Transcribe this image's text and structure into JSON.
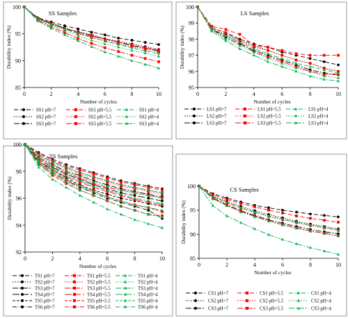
{
  "chart_data": [
    {
      "type": "line",
      "title": "SS Samples",
      "xlabel": "Number of cycles",
      "ylabel": "Durability index (%)",
      "xlim": [
        0,
        10
      ],
      "ylim": [
        85,
        100
      ],
      "xticks": [
        0,
        2,
        4,
        6,
        8,
        10
      ],
      "yticks": [
        85,
        90,
        95,
        100
      ],
      "x": [
        0,
        1,
        2,
        3,
        4,
        5,
        6,
        7,
        8,
        9,
        10
      ],
      "series": [
        {
          "name": "SS1 pH=7",
          "color": "#000000",
          "dash": "6,3",
          "marker": "circle",
          "values": [
            100,
            98.0,
            97.2,
            96.5,
            95.9,
            95.3,
            94.8,
            94.2,
            93.8,
            93.4,
            93.0
          ]
        },
        {
          "name": "SS2 pH=7",
          "color": "#000000",
          "dash": "1.5,2",
          "marker": "circle",
          "values": [
            100,
            97.9,
            97.0,
            96.1,
            95.4,
            94.8,
            94.1,
            93.6,
            93.1,
            92.6,
            92.1
          ]
        },
        {
          "name": "SS3 pH=7",
          "color": "#000000",
          "dash": "8,2,2,2",
          "marker": "circle",
          "values": [
            100,
            97.8,
            96.9,
            96.0,
            95.3,
            94.6,
            94.0,
            93.4,
            92.8,
            92.3,
            91.8
          ]
        },
        {
          "name": "SS1 pH=5.5",
          "color": "#ff0000",
          "dash": "6,3",
          "marker": "square",
          "values": [
            100,
            97.9,
            96.9,
            96.0,
            95.3,
            94.7,
            94.0,
            93.5,
            92.9,
            92.4,
            92.0
          ]
        },
        {
          "name": "SS2 pH=5.5",
          "color": "#ff0000",
          "dash": "1.5,2",
          "marker": "square",
          "values": [
            100,
            97.7,
            96.7,
            95.8,
            95.0,
            94.3,
            93.7,
            93.1,
            92.6,
            92.1,
            91.6
          ]
        },
        {
          "name": "SS3 pH=5.5",
          "color": "#ff0000",
          "dash": "8,2,2,2",
          "marker": "square",
          "values": [
            100,
            97.5,
            96.3,
            95.2,
            94.1,
            93.2,
            92.4,
            91.7,
            91.0,
            90.4,
            89.8
          ]
        },
        {
          "name": "SS1 pH=4",
          "color": "#00b050",
          "dash": "6,3",
          "marker": "triangle",
          "values": [
            100,
            97.8,
            96.8,
            95.9,
            95.1,
            94.4,
            93.6,
            93.0,
            92.4,
            91.8,
            91.3
          ]
        },
        {
          "name": "SS2 pH=4",
          "color": "#00b050",
          "dash": "1.5,2",
          "marker": "triangle",
          "values": [
            100,
            97.6,
            96.5,
            95.5,
            94.6,
            93.8,
            93.1,
            92.5,
            91.9,
            91.4,
            90.8
          ]
        },
        {
          "name": "SS3 pH=4",
          "color": "#00b050",
          "dash": "8,2,2,2",
          "marker": "triangle",
          "values": [
            100,
            97.4,
            96.0,
            94.8,
            93.7,
            92.6,
            91.6,
            90.8,
            90.0,
            89.3,
            88.6
          ]
        }
      ]
    },
    {
      "type": "line",
      "title": "LS Samples",
      "xlabel": "Number of cycles",
      "ylabel": "Durability index (%)",
      "xlim": [
        0,
        10
      ],
      "ylim": [
        95,
        100
      ],
      "xticks": [
        0,
        2,
        4,
        6,
        8,
        10
      ],
      "yticks": [
        95,
        96,
        97,
        98,
        99,
        100
      ],
      "x": [
        0,
        1,
        2,
        3,
        4,
        5,
        6,
        7,
        8,
        9,
        10
      ],
      "series": [
        {
          "name": "LS1 pH=7",
          "color": "#000000",
          "dash": "6,3",
          "marker": "circle",
          "values": [
            100,
            98.7,
            98.4,
            98.0,
            97.7,
            97.5,
            97.2,
            97.0,
            96.8,
            96.6,
            96.4
          ]
        },
        {
          "name": "LS2 pH=7",
          "color": "#000000",
          "dash": "1.5,2",
          "marker": "circle",
          "values": [
            100,
            98.6,
            98.3,
            97.9,
            97.6,
            97.3,
            97.0,
            96.7,
            96.5,
            96.2,
            96.0
          ]
        },
        {
          "name": "LS3 pH=7",
          "color": "#000000",
          "dash": "8,2,2,2",
          "marker": "circle",
          "values": [
            100,
            98.6,
            98.1,
            97.7,
            97.3,
            97.0,
            96.7,
            96.4,
            96.1,
            95.9,
            95.8
          ]
        },
        {
          "name": "LS1 pH=5.5",
          "color": "#ff0000",
          "dash": "6,3",
          "marker": "square",
          "values": [
            100,
            98.8,
            98.6,
            98.3,
            97.6,
            97.5,
            97.3,
            97.1,
            97.0,
            97.0,
            97.0
          ]
        },
        {
          "name": "LS2 pH=5.5",
          "color": "#ff0000",
          "dash": "1.5,2",
          "marker": "square",
          "values": [
            100,
            98.7,
            98.4,
            97.9,
            97.5,
            97.3,
            97.0,
            96.7,
            96.5,
            96.2,
            96.0
          ]
        },
        {
          "name": "LS3 pH=5.5",
          "color": "#ff0000",
          "dash": "8,2,2,2",
          "marker": "square",
          "values": [
            100,
            98.6,
            98.2,
            97.8,
            97.2,
            96.9,
            96.6,
            96.3,
            96.0,
            95.8,
            95.8
          ]
        },
        {
          "name": "LS1 pH=4",
          "color": "#00b050",
          "dash": "6,3",
          "marker": "triangle",
          "values": [
            100,
            98.7,
            98.2,
            97.8,
            97.4,
            97.1,
            96.8,
            96.5,
            96.3,
            96.1,
            95.9
          ]
        },
        {
          "name": "LS2 pH=4",
          "color": "#00b050",
          "dash": "1.5,2",
          "marker": "triangle",
          "values": [
            100,
            98.6,
            98.0,
            97.6,
            97.2,
            96.8,
            96.5,
            96.2,
            96.0,
            95.7,
            95.6
          ]
        },
        {
          "name": "LS3 pH=4",
          "color": "#00b050",
          "dash": "8,2,2,2",
          "marker": "triangle",
          "values": [
            100,
            98.5,
            97.9,
            97.4,
            97.0,
            96.6,
            96.3,
            96.0,
            95.7,
            95.5,
            95.4
          ]
        }
      ]
    },
    {
      "type": "line",
      "title": "TS Samples",
      "xlabel": "Number of cycles",
      "ylabel": "Durability index (%)",
      "xlim": [
        0,
        10
      ],
      "ylim": [
        92,
        100
      ],
      "xticks": [
        0,
        2,
        4,
        6,
        8,
        10
      ],
      "yticks": [
        92,
        94,
        96,
        98,
        100
      ],
      "x": [
        0,
        1,
        2,
        3,
        4,
        5,
        6,
        7,
        8,
        9,
        10
      ],
      "series": [
        {
          "name": "TS1 pH=7",
          "color": "#000000",
          "dash": "6,3",
          "marker": "circle",
          "values": [
            100,
            99.4,
            98.9,
            98.5,
            98.2,
            97.9,
            97.6,
            97.3,
            97.1,
            96.9,
            96.7
          ]
        },
        {
          "name": "TS2 pH=7",
          "color": "#000000",
          "dash": "1.5,2",
          "marker": "circle",
          "values": [
            100,
            99.2,
            98.7,
            98.3,
            97.9,
            97.6,
            97.3,
            97.0,
            96.8,
            96.6,
            96.4
          ]
        },
        {
          "name": "TS3 pH=7",
          "color": "#000000",
          "dash": "8,2,2,2",
          "marker": "circle",
          "values": [
            100,
            99.0,
            98.5,
            98.0,
            97.7,
            97.3,
            97.0,
            96.7,
            96.5,
            96.3,
            96.1
          ]
        },
        {
          "name": "TS4 pH=7",
          "color": "#000000",
          "dash": "10,3",
          "marker": "circle",
          "values": [
            100,
            98.9,
            98.3,
            97.8,
            97.4,
            97.0,
            96.7,
            96.4,
            96.2,
            96.0,
            95.8
          ]
        },
        {
          "name": "TS5 pH=7",
          "color": "#000000",
          "dash": "4,2",
          "marker": "circle",
          "values": [
            100,
            98.7,
            98.1,
            97.5,
            97.0,
            96.6,
            96.3,
            96.0,
            95.8,
            95.6,
            95.4
          ]
        },
        {
          "name": "TS6 pH=7",
          "color": "#000000",
          "dash": "6,2,1,2",
          "marker": "circle",
          "values": [
            100,
            98.6,
            97.9,
            97.3,
            96.8,
            96.4,
            96.0,
            95.7,
            95.4,
            95.1,
            94.5
          ]
        },
        {
          "name": "TS1 pH=5.5",
          "color": "#ff0000",
          "dash": "6,3",
          "marker": "square",
          "values": [
            100,
            99.3,
            98.8,
            98.4,
            98.1,
            97.8,
            97.5,
            97.2,
            97.0,
            96.8,
            96.6
          ]
        },
        {
          "name": "TS2 pH=5.5",
          "color": "#ff0000",
          "dash": "1.5,2",
          "marker": "square",
          "values": [
            100,
            99.1,
            98.6,
            98.2,
            97.8,
            97.5,
            97.2,
            96.9,
            96.7,
            96.5,
            96.3
          ]
        },
        {
          "name": "TS3 pH=5.5",
          "color": "#ff0000",
          "dash": "8,2,2,2",
          "marker": "square",
          "values": [
            100,
            98.9,
            98.3,
            97.9,
            97.5,
            97.1,
            96.8,
            96.6,
            96.4,
            96.2,
            96.0
          ]
        },
        {
          "name": "TS4 pH=5.5",
          "color": "#ff0000",
          "dash": "10,3",
          "marker": "square",
          "values": [
            100,
            98.8,
            98.1,
            97.6,
            97.2,
            96.8,
            96.5,
            96.2,
            95.9,
            95.7,
            95.5
          ]
        },
        {
          "name": "TS5 pH=5.5",
          "color": "#ff0000",
          "dash": "4,2",
          "marker": "square",
          "values": [
            100,
            98.6,
            97.9,
            97.3,
            96.9,
            96.5,
            96.1,
            95.8,
            95.5,
            95.3,
            95.0
          ]
        },
        {
          "name": "TS6 pH=5.5",
          "color": "#ff0000",
          "dash": "6,2,1,2",
          "marker": "square",
          "values": [
            100,
            98.5,
            97.7,
            97.1,
            96.6,
            96.2,
            95.8,
            95.4,
            95.1,
            94.8,
            94.7
          ]
        },
        {
          "name": "TS1 pH=4",
          "color": "#00b050",
          "dash": "6,3",
          "marker": "triangle",
          "values": [
            100,
            99.2,
            98.7,
            98.3,
            97.9,
            97.6,
            97.3,
            97.0,
            96.8,
            96.6,
            96.4
          ]
        },
        {
          "name": "TS2 pH=4",
          "color": "#00b050",
          "dash": "1.5,2",
          "marker": "triangle",
          "values": [
            100,
            99.0,
            98.4,
            98.0,
            97.6,
            97.2,
            96.9,
            96.6,
            96.4,
            96.2,
            96.0
          ]
        },
        {
          "name": "TS3 pH=4",
          "color": "#00b050",
          "dash": "8,2,2,2",
          "marker": "triangle",
          "values": [
            100,
            98.8,
            98.2,
            97.7,
            97.3,
            96.9,
            96.6,
            96.3,
            96.0,
            95.8,
            95.6
          ]
        },
        {
          "name": "TS4 pH=4",
          "color": "#00b050",
          "dash": "10,3",
          "marker": "triangle",
          "values": [
            100,
            98.7,
            98.0,
            97.4,
            96.9,
            96.5,
            96.1,
            95.8,
            95.5,
            95.3,
            95.1
          ]
        },
        {
          "name": "TS5 pH=4",
          "color": "#00b050",
          "dash": "4,2",
          "marker": "triangle",
          "values": [
            100,
            98.5,
            97.8,
            97.2,
            96.6,
            96.2,
            95.8,
            95.4,
            95.1,
            94.8,
            94.6
          ]
        },
        {
          "name": "TS6 pH=4",
          "color": "#00b050",
          "dash": "6,2,1,2",
          "marker": "triangle",
          "values": [
            100,
            98.3,
            97.4,
            96.8,
            96.2,
            95.7,
            95.2,
            94.8,
            94.4,
            94.1,
            93.8
          ]
        }
      ]
    },
    {
      "type": "line",
      "title": "CS Samples",
      "xlabel": "Number of cycles",
      "ylabel": "Durability index (%)",
      "xlim": [
        0,
        10
      ],
      "ylim": [
        85,
        100
      ],
      "xticks": [
        0,
        2,
        4,
        6,
        8,
        10
      ],
      "yticks": [
        85,
        90,
        95,
        100
      ],
      "x": [
        0,
        1,
        2,
        3,
        4,
        5,
        6,
        7,
        8,
        9,
        10
      ],
      "series": [
        {
          "name": "CS1 pH=7",
          "color": "#000000",
          "dash": "6,3",
          "marker": "circle",
          "values": [
            100,
            98.4,
            97.5,
            96.7,
            96.0,
            95.5,
            95.0,
            94.6,
            94.2,
            93.9,
            93.6
          ]
        },
        {
          "name": "CS2 pH=7",
          "color": "#000000",
          "dash": "1.5,2",
          "marker": "circle",
          "values": [
            100,
            97.9,
            96.8,
            95.8,
            94.9,
            94.1,
            93.4,
            92.7,
            92.1,
            91.6,
            91.1
          ]
        },
        {
          "name": "CS3 pH=7",
          "color": "#000000",
          "dash": "8,2,2,2",
          "marker": "circle",
          "values": [
            100,
            97.5,
            96.1,
            94.9,
            93.9,
            93.0,
            92.3,
            91.6,
            91.0,
            90.5,
            90.1
          ]
        },
        {
          "name": "CS1 pH=5.5",
          "color": "#ff0000",
          "dash": "6,3",
          "marker": "square",
          "values": [
            100,
            98.2,
            97.2,
            96.4,
            95.7,
            95.0,
            94.4,
            93.8,
            93.3,
            92.9,
            92.5
          ]
        },
        {
          "name": "CS2 pH=5.5",
          "color": "#ff0000",
          "dash": "1.5,2",
          "marker": "square",
          "values": [
            100,
            97.7,
            96.5,
            95.4,
            94.5,
            93.7,
            93.0,
            92.4,
            91.8,
            91.3,
            90.8
          ]
        },
        {
          "name": "CS3 pH=5.5",
          "color": "#ff0000",
          "dash": "8,2,2,2",
          "marker": "square",
          "values": [
            100,
            97.4,
            96.0,
            94.8,
            93.7,
            92.8,
            92.0,
            91.3,
            90.7,
            90.2,
            89.7
          ]
        },
        {
          "name": "CS1 pH=4",
          "color": "#00b050",
          "dash": "6,3",
          "marker": "triangle",
          "values": [
            100,
            97.8,
            96.6,
            95.5,
            94.6,
            93.8,
            93.1,
            92.5,
            91.9,
            91.4,
            90.9
          ]
        },
        {
          "name": "CS2 pH=4",
          "color": "#00b050",
          "dash": "1.5,2",
          "marker": "triangle",
          "values": [
            100,
            97.3,
            95.9,
            94.6,
            93.6,
            92.7,
            91.9,
            91.2,
            90.6,
            90.1,
            89.6
          ]
        },
        {
          "name": "CS3 pH=4",
          "color": "#00b050",
          "dash": "8,2,2,2",
          "marker": "triangle",
          "values": [
            100,
            95.9,
            93.8,
            92.4,
            91.1,
            89.9,
            88.9,
            88.0,
            87.2,
            86.5,
            85.8
          ]
        }
      ]
    }
  ]
}
